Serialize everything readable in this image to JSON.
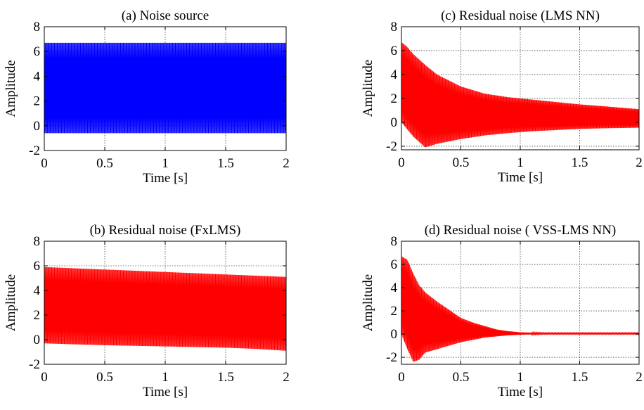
{
  "chart_data": [
    {
      "type": "line",
      "title": "(a) Noise source",
      "xlabel": "Time [s]",
      "ylabel": "Amplitude",
      "xlim": [
        0,
        2
      ],
      "ylim": [
        -2,
        8
      ],
      "xticks": [
        "0",
        "0.5",
        "1",
        "1.5",
        "2"
      ],
      "yticks": [
        "-2",
        "0",
        "2",
        "4",
        "6",
        "8"
      ],
      "grid": true,
      "color": "#0000ff",
      "series": [
        {
          "x": [
            0,
            0.25,
            0.5,
            0.75,
            1.0,
            1.25,
            1.5,
            1.75,
            2.0
          ],
          "upper": [
            6.7,
            6.7,
            6.7,
            6.7,
            6.7,
            6.7,
            6.7,
            6.7,
            6.7
          ],
          "lower": [
            -0.6,
            -0.6,
            -0.6,
            -0.6,
            -0.6,
            -0.6,
            -0.6,
            -0.6,
            -0.6
          ]
        }
      ]
    },
    {
      "type": "line",
      "title": "(b) Residual noise (FxLMS)",
      "xlabel": "Time [s]",
      "ylabel": "Amplitude",
      "xlim": [
        0,
        2
      ],
      "ylim": [
        -2,
        8
      ],
      "xticks": [
        "0",
        "0.5",
        "1",
        "1.5",
        "2"
      ],
      "yticks": [
        "-2",
        "0",
        "2",
        "4",
        "6",
        "8"
      ],
      "grid": true,
      "color": "#ff0000",
      "series": [
        {
          "x": [
            0,
            0.25,
            0.5,
            0.75,
            1.0,
            1.25,
            1.5,
            1.75,
            2.0
          ],
          "upper": [
            5.9,
            5.8,
            5.7,
            5.6,
            5.5,
            5.4,
            5.3,
            5.2,
            5.1
          ],
          "lower": [
            -0.3,
            -0.38,
            -0.45,
            -0.5,
            -0.55,
            -0.6,
            -0.65,
            -0.75,
            -0.9
          ]
        }
      ]
    },
    {
      "type": "line",
      "title": "(c) Residual noise (LMS NN)",
      "xlabel": "Time [s]",
      "ylabel": "Amplitude",
      "xlim": [
        0,
        2
      ],
      "ylim": [
        -2.3,
        8
      ],
      "xticks": [
        "0",
        "0.5",
        "1",
        "1.5",
        "2"
      ],
      "yticks": [
        "-2",
        "0",
        "2",
        "4",
        "6",
        "8"
      ],
      "grid": true,
      "color": "#ff0000",
      "series": [
        {
          "x": [
            0,
            0.05,
            0.1,
            0.2,
            0.3,
            0.5,
            0.7,
            0.9,
            1.1,
            1.3,
            1.5,
            1.7,
            2.0
          ],
          "upper": [
            6.7,
            6.3,
            5.7,
            4.8,
            4.0,
            3.0,
            2.4,
            2.1,
            1.9,
            1.7,
            1.5,
            1.35,
            1.1
          ],
          "lower": [
            0.0,
            -0.6,
            -1.2,
            -2.1,
            -1.8,
            -1.4,
            -1.1,
            -0.9,
            -0.75,
            -0.65,
            -0.55,
            -0.5,
            -0.45
          ]
        }
      ]
    },
    {
      "type": "line",
      "title": "(d) Residual noise ( VSS-LMS NN)",
      "xlabel": "Time [s]",
      "ylabel": "Amplitude",
      "xlim": [
        0,
        2
      ],
      "ylim": [
        -2.6,
        8
      ],
      "xticks": [
        "0",
        "0.5",
        "1",
        "1.5",
        "2"
      ],
      "yticks": [
        "-2",
        "0",
        "2",
        "4",
        "6",
        "8"
      ],
      "grid": true,
      "color": "#ff0000",
      "series": [
        {
          "x": [
            0,
            0.05,
            0.1,
            0.15,
            0.2,
            0.3,
            0.4,
            0.5,
            0.6,
            0.7,
            0.8,
            0.9,
            1.0,
            1.2,
            1.5,
            2.0
          ],
          "upper": [
            6.7,
            6.4,
            5.2,
            4.2,
            3.6,
            2.8,
            2.1,
            1.4,
            1.0,
            0.7,
            0.4,
            0.25,
            0.15,
            0.1,
            0.1,
            0.1
          ],
          "lower": [
            0.0,
            -1.3,
            -2.4,
            -2.2,
            -1.6,
            -1.3,
            -1.0,
            -0.7,
            -0.5,
            -0.3,
            -0.2,
            -0.1,
            -0.05,
            0.0,
            0.0,
            0.0
          ]
        }
      ]
    }
  ]
}
